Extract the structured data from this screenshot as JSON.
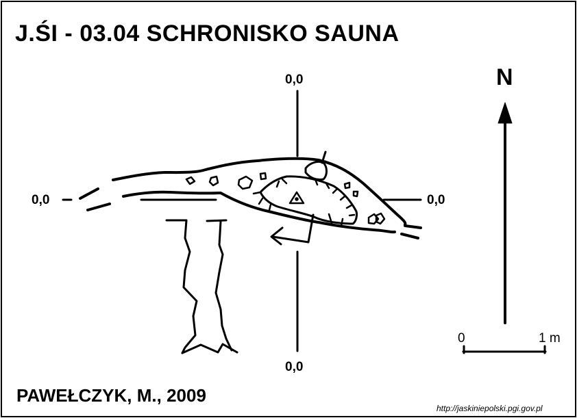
{
  "title": "J.ŚI - 03.04  SCHRONISKO SAUNA",
  "author": "PAWEŁCZYK, M., 2009",
  "coords": {
    "top": "0,0",
    "bottom": "0,0",
    "left": "0,0",
    "right": "0,0"
  },
  "north_label": "N",
  "scale": {
    "start_label": "0",
    "end_label": "1 m"
  },
  "source_url": "http://jaskiniepolski.pgi.gov.pl",
  "icons": {
    "survey_station": "triangle-with-dot-icon",
    "north_arrow": "arrow-up-icon",
    "direction_arrow": "arrow-left-icon"
  },
  "colors": {
    "ink": "#000000",
    "paper": "#ffffff"
  }
}
